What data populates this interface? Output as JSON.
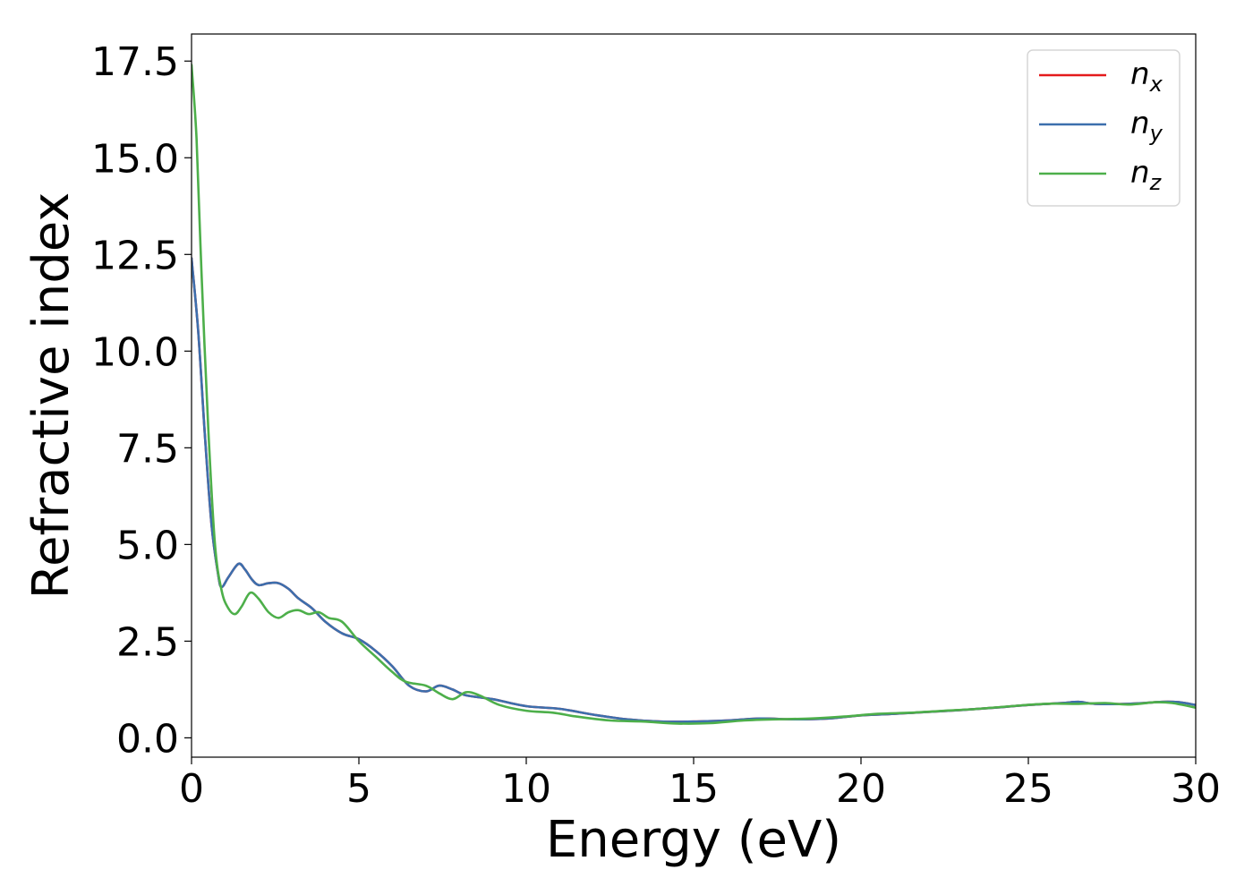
{
  "chart_data": {
    "type": "line",
    "title": "",
    "xlabel": "Energy (eV)",
    "ylabel": "Refractive index",
    "xlim": [
      0,
      30
    ],
    "ylim": [
      -0.5,
      18.2
    ],
    "xticks": [
      0,
      5,
      10,
      15,
      20,
      25,
      30
    ],
    "xtick_labels": [
      "0",
      "5",
      "10",
      "15",
      "20",
      "25",
      "30"
    ],
    "yticks": [
      0,
      2.5,
      5,
      7.5,
      10,
      12.5,
      15,
      17.5
    ],
    "ytick_labels": [
      "0.0",
      "2.5",
      "5.0",
      "7.5",
      "10.0",
      "12.5",
      "15.0",
      "17.5"
    ],
    "grid": false,
    "legend_position": "top-right",
    "series": [
      {
        "name": "n_x",
        "label_base": "n",
        "label_sub": "x",
        "color": "#e41a1c",
        "points": [
          [
            0,
            12.4
          ],
          [
            0.2,
            10.5
          ],
          [
            0.4,
            7.8
          ],
          [
            0.6,
            5.5
          ],
          [
            0.8,
            4.2
          ],
          [
            0.9,
            3.9
          ],
          [
            1.1,
            4.15
          ],
          [
            1.4,
            4.5
          ],
          [
            1.6,
            4.35
          ],
          [
            1.8,
            4.1
          ],
          [
            2.0,
            3.95
          ],
          [
            2.3,
            4.0
          ],
          [
            2.6,
            4.0
          ],
          [
            2.9,
            3.85
          ],
          [
            3.2,
            3.6
          ],
          [
            3.6,
            3.35
          ],
          [
            4.0,
            3.0
          ],
          [
            4.5,
            2.7
          ],
          [
            5.0,
            2.55
          ],
          [
            5.5,
            2.25
          ],
          [
            6.0,
            1.85
          ],
          [
            6.5,
            1.35
          ],
          [
            7.0,
            1.2
          ],
          [
            7.4,
            1.35
          ],
          [
            7.8,
            1.25
          ],
          [
            8.2,
            1.1
          ],
          [
            9.0,
            1.0
          ],
          [
            10.0,
            0.82
          ],
          [
            11.0,
            0.75
          ],
          [
            12.0,
            0.6
          ],
          [
            13.0,
            0.48
          ],
          [
            14.0,
            0.42
          ],
          [
            15.0,
            0.42
          ],
          [
            16.0,
            0.45
          ],
          [
            17.0,
            0.5
          ],
          [
            18.0,
            0.48
          ],
          [
            19.0,
            0.5
          ],
          [
            20.0,
            0.58
          ],
          [
            21.0,
            0.62
          ],
          [
            22.0,
            0.67
          ],
          [
            23.0,
            0.72
          ],
          [
            24.0,
            0.78
          ],
          [
            25.0,
            0.85
          ],
          [
            26.0,
            0.9
          ],
          [
            26.5,
            0.93
          ],
          [
            27.0,
            0.88
          ],
          [
            28.0,
            0.88
          ],
          [
            29.0,
            0.93
          ],
          [
            29.5,
            0.92
          ],
          [
            30.0,
            0.85
          ]
        ]
      },
      {
        "name": "n_y",
        "label_base": "n",
        "label_sub": "y",
        "color": "#3c6fad",
        "points": [
          [
            0,
            12.4
          ],
          [
            0.2,
            10.5
          ],
          [
            0.4,
            7.8
          ],
          [
            0.6,
            5.5
          ],
          [
            0.8,
            4.2
          ],
          [
            0.9,
            3.9
          ],
          [
            1.1,
            4.15
          ],
          [
            1.4,
            4.5
          ],
          [
            1.6,
            4.35
          ],
          [
            1.8,
            4.1
          ],
          [
            2.0,
            3.95
          ],
          [
            2.3,
            4.0
          ],
          [
            2.6,
            4.0
          ],
          [
            2.9,
            3.85
          ],
          [
            3.2,
            3.6
          ],
          [
            3.6,
            3.35
          ],
          [
            4.0,
            3.0
          ],
          [
            4.5,
            2.7
          ],
          [
            5.0,
            2.55
          ],
          [
            5.5,
            2.25
          ],
          [
            6.0,
            1.85
          ],
          [
            6.5,
            1.35
          ],
          [
            7.0,
            1.2
          ],
          [
            7.4,
            1.35
          ],
          [
            7.8,
            1.25
          ],
          [
            8.2,
            1.1
          ],
          [
            9.0,
            1.0
          ],
          [
            10.0,
            0.82
          ],
          [
            11.0,
            0.75
          ],
          [
            12.0,
            0.6
          ],
          [
            13.0,
            0.48
          ],
          [
            14.0,
            0.42
          ],
          [
            15.0,
            0.42
          ],
          [
            16.0,
            0.45
          ],
          [
            17.0,
            0.5
          ],
          [
            18.0,
            0.48
          ],
          [
            19.0,
            0.5
          ],
          [
            20.0,
            0.58
          ],
          [
            21.0,
            0.62
          ],
          [
            22.0,
            0.67
          ],
          [
            23.0,
            0.72
          ],
          [
            24.0,
            0.78
          ],
          [
            25.0,
            0.85
          ],
          [
            26.0,
            0.9
          ],
          [
            26.5,
            0.93
          ],
          [
            27.0,
            0.88
          ],
          [
            28.0,
            0.88
          ],
          [
            29.0,
            0.93
          ],
          [
            29.5,
            0.92
          ],
          [
            30.0,
            0.85
          ]
        ]
      },
      {
        "name": "n_z",
        "label_base": "n",
        "label_sub": "z",
        "color": "#4daf4a",
        "points": [
          [
            0,
            17.4
          ],
          [
            0.15,
            15.5
          ],
          [
            0.3,
            12.0
          ],
          [
            0.5,
            8.0
          ],
          [
            0.7,
            5.0
          ],
          [
            0.9,
            3.8
          ],
          [
            1.1,
            3.35
          ],
          [
            1.3,
            3.2
          ],
          [
            1.5,
            3.4
          ],
          [
            1.75,
            3.75
          ],
          [
            2.0,
            3.6
          ],
          [
            2.3,
            3.25
          ],
          [
            2.6,
            3.1
          ],
          [
            2.9,
            3.25
          ],
          [
            3.2,
            3.3
          ],
          [
            3.5,
            3.2
          ],
          [
            3.8,
            3.25
          ],
          [
            4.1,
            3.1
          ],
          [
            4.5,
            3.0
          ],
          [
            5.0,
            2.5
          ],
          [
            5.5,
            2.1
          ],
          [
            6.0,
            1.7
          ],
          [
            6.4,
            1.45
          ],
          [
            7.0,
            1.35
          ],
          [
            7.4,
            1.15
          ],
          [
            7.8,
            1.0
          ],
          [
            8.2,
            1.18
          ],
          [
            8.6,
            1.1
          ],
          [
            9.2,
            0.85
          ],
          [
            10.0,
            0.7
          ],
          [
            10.8,
            0.65
          ],
          [
            11.5,
            0.55
          ],
          [
            12.5,
            0.45
          ],
          [
            13.5,
            0.42
          ],
          [
            14.5,
            0.37
          ],
          [
            15.5,
            0.38
          ],
          [
            16.5,
            0.45
          ],
          [
            17.5,
            0.48
          ],
          [
            18.5,
            0.5
          ],
          [
            19.5,
            0.55
          ],
          [
            20.5,
            0.62
          ],
          [
            21.5,
            0.65
          ],
          [
            22.5,
            0.7
          ],
          [
            23.5,
            0.75
          ],
          [
            24.5,
            0.82
          ],
          [
            25.5,
            0.88
          ],
          [
            26.5,
            0.88
          ],
          [
            27.3,
            0.9
          ],
          [
            28.0,
            0.86
          ],
          [
            28.8,
            0.92
          ],
          [
            29.3,
            0.9
          ],
          [
            30.0,
            0.78
          ]
        ]
      }
    ]
  }
}
